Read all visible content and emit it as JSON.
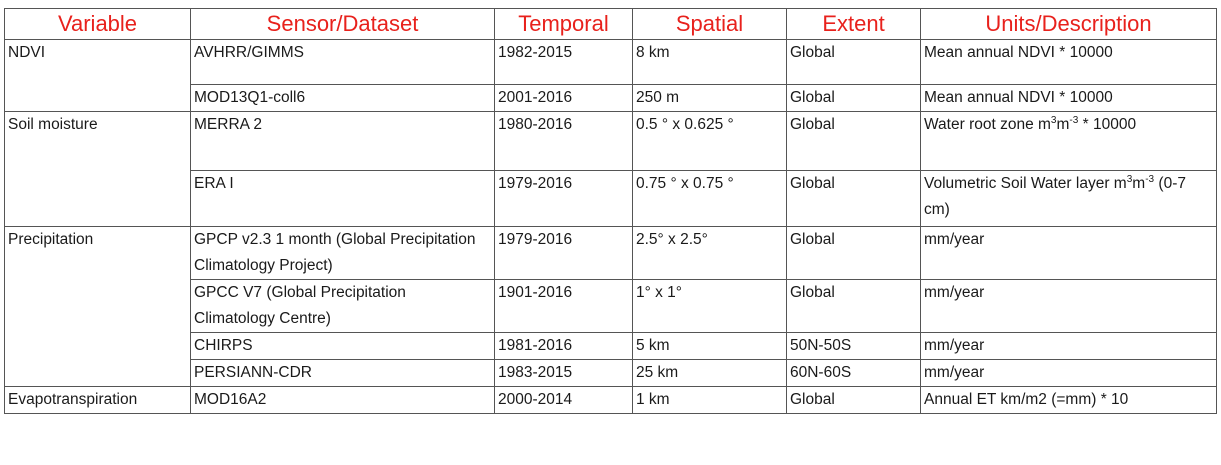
{
  "headers": {
    "variable": "Variable",
    "sensor": "Sensor/Dataset",
    "temporal": "Temporal",
    "spatial": "Spatial",
    "extent": "Extent",
    "units": "Units/Description"
  },
  "variables": {
    "ndvi": "NDVI",
    "soil": "Soil moisture",
    "precip": "Precipitation",
    "et": "Evapotranspiration"
  },
  "rows": [
    {
      "sensor": "AVHRR/GIMMS",
      "temporal": "1982-2015",
      "spatial": "8 km",
      "extent": "Global",
      "units": "Mean annual NDVI * 10000"
    },
    {
      "sensor": "MOD13Q1-coll6",
      "temporal": "2001-2016",
      "spatial": "250 m",
      "extent": "Global",
      "units": "Mean annual NDVI * 10000"
    },
    {
      "sensor": "MERRA 2",
      "temporal": "1980-2016",
      "spatial": "0.5 ° x 0.625 °",
      "extent": "Global",
      "units_a": "Water root zone m",
      "units_sup1": "3",
      "units_b": "m",
      "units_sup2": "-3",
      "units_c": " * 10000"
    },
    {
      "sensor": "ERA I",
      "temporal": "1979-2016",
      "spatial": "0.75 ° x 0.75 °",
      "extent": "Global",
      "units_a": "Volumetric Soil Water layer m",
      "units_sup1": "3",
      "units_b": "m",
      "units_sup2": "-3",
      "units_c": " (0-7 cm)"
    },
    {
      "sensor": "GPCP v2.3 1 month (Global Precipitation Climatology Project)",
      "temporal": "1979-2016",
      "spatial": "2.5° x 2.5°",
      "extent": "Global",
      "units": "mm/year"
    },
    {
      "sensor": "GPCC V7 (Global Precipitation Climatology Centre)",
      "temporal": "1901-2016",
      "spatial": "1° x 1°",
      "extent": "Global",
      "units": "mm/year"
    },
    {
      "sensor": "CHIRPS",
      "temporal": "1981-2016",
      "spatial": "5 km",
      "extent": "50N-50S",
      "units": "mm/year"
    },
    {
      "sensor": "PERSIANN-CDR",
      "temporal": "1983-2015",
      "spatial": "25 km",
      "extent": "60N-60S",
      "units": "mm/year"
    },
    {
      "sensor": "MOD16A2",
      "temporal": "2000-2014",
      "spatial": "1 km",
      "extent": "Global",
      "units": "Annual ET km/m2 (=mm) * 10"
    }
  ]
}
